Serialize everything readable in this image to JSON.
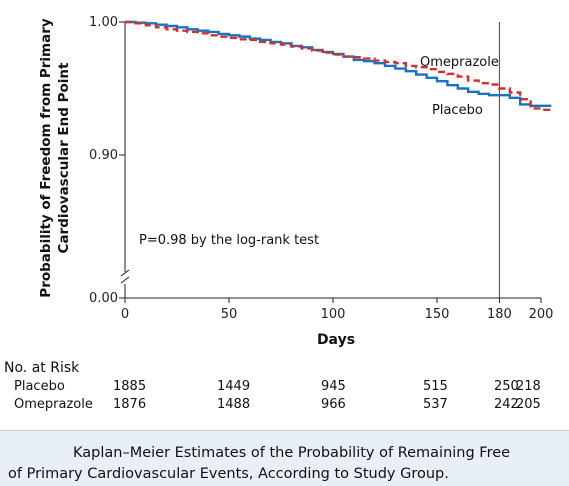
{
  "chart_data": {
    "type": "line",
    "ylabel_lines": [
      "Probability of Freedom from Primary",
      "Cardiovascular End Point"
    ],
    "xlabel": "Days",
    "xlim": [
      0,
      200
    ],
    "ylim": [
      0.9,
      1.0
    ],
    "y_break": true,
    "x_ticks": [
      0,
      50,
      100,
      150,
      180,
      200
    ],
    "y_ticks": [
      {
        "value": 1.0,
        "label": "1.00"
      },
      {
        "value": 0.9,
        "label": "0.90"
      },
      {
        "value": 0.0,
        "label": "0.00"
      }
    ],
    "reference_line_x": 180,
    "annotation": "P=0.98 by the log-rank test",
    "series": [
      {
        "name": "Placebo",
        "color": "#1a73c2",
        "dash": "solid",
        "x": [
          0,
          5,
          10,
          15,
          20,
          25,
          30,
          35,
          40,
          45,
          50,
          55,
          60,
          65,
          70,
          75,
          80,
          85,
          90,
          95,
          100,
          105,
          110,
          115,
          120,
          125,
          130,
          135,
          140,
          145,
          150,
          155,
          160,
          165,
          170,
          175,
          180,
          185,
          190,
          195,
          200,
          205
        ],
        "y": [
          1.0,
          0.9995,
          0.999,
          0.998,
          0.997,
          0.996,
          0.9945,
          0.9935,
          0.9925,
          0.991,
          0.99,
          0.989,
          0.9875,
          0.9865,
          0.985,
          0.984,
          0.982,
          0.981,
          0.979,
          0.9775,
          0.976,
          0.974,
          0.9715,
          0.9705,
          0.969,
          0.967,
          0.965,
          0.963,
          0.9605,
          0.958,
          0.9555,
          0.9525,
          0.95,
          0.9475,
          0.946,
          0.945,
          0.945,
          0.943,
          0.938,
          0.937,
          0.937,
          0.937
        ]
      },
      {
        "name": "Omeprazole",
        "color": "#d32f2f",
        "dash": "dashed",
        "x": [
          0,
          5,
          10,
          15,
          20,
          25,
          30,
          35,
          40,
          45,
          50,
          55,
          60,
          65,
          70,
          75,
          80,
          85,
          90,
          95,
          100,
          105,
          110,
          115,
          120,
          125,
          130,
          135,
          140,
          145,
          150,
          155,
          160,
          165,
          170,
          175,
          180,
          185,
          190,
          195,
          200,
          205
        ],
        "y": [
          1.0,
          0.999,
          0.9975,
          0.996,
          0.9945,
          0.9935,
          0.9925,
          0.9915,
          0.99,
          0.989,
          0.988,
          0.987,
          0.9865,
          0.985,
          0.984,
          0.983,
          0.9815,
          0.98,
          0.9785,
          0.977,
          0.9755,
          0.974,
          0.9735,
          0.9725,
          0.971,
          0.97,
          0.969,
          0.967,
          0.966,
          0.9645,
          0.9625,
          0.961,
          0.959,
          0.956,
          0.954,
          0.953,
          0.95,
          0.947,
          0.942,
          0.935,
          0.934,
          0.934
        ]
      }
    ]
  },
  "risk_table": {
    "title": "No. at Risk",
    "columns_days": [
      0,
      50,
      100,
      150,
      180,
      200
    ],
    "rows": [
      {
        "label": "Placebo",
        "values": [
          "1885",
          "1449",
          "945",
          "515",
          "250",
          "218"
        ]
      },
      {
        "label": "Omeprazole",
        "values": [
          "1876",
          "1488",
          "966",
          "537",
          "242",
          "205"
        ]
      }
    ]
  },
  "caption": {
    "line1": "Kaplan–Meier Estimates of the Probability of Remaining Free",
    "line2": "of Primary Cardiovascular Events, According to Study Group."
  }
}
